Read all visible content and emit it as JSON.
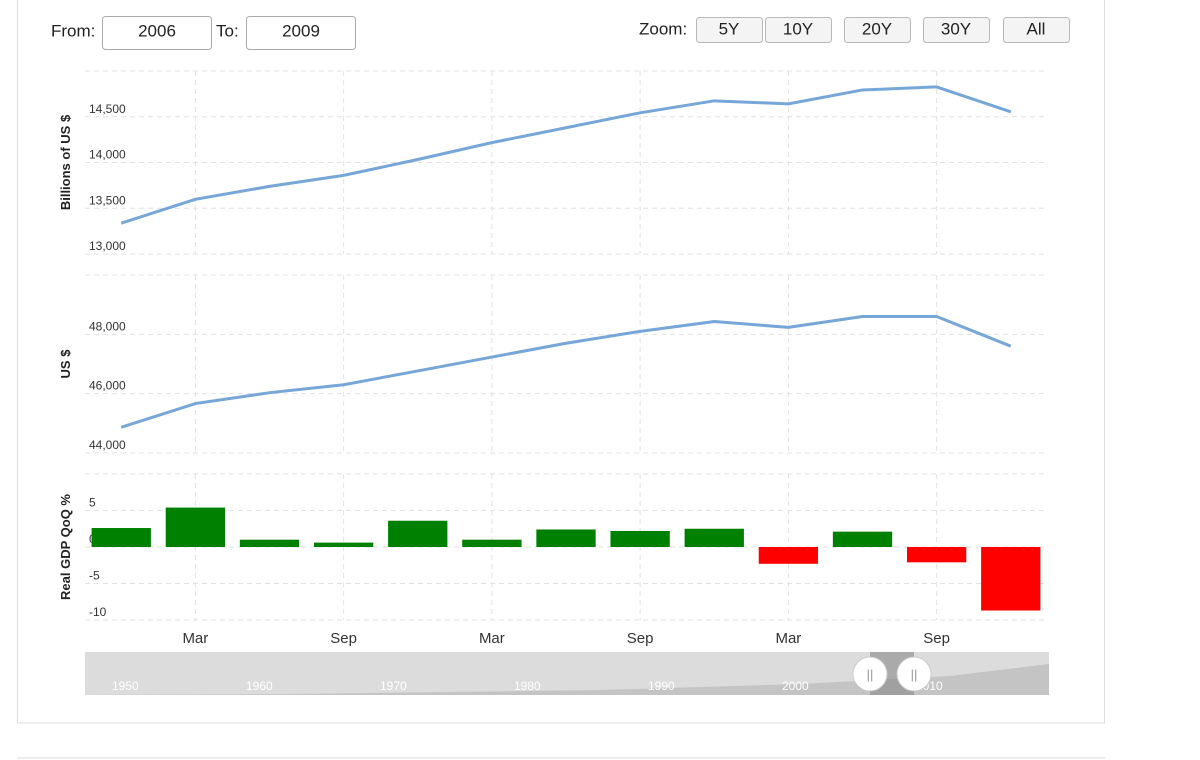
{
  "controls": {
    "from_label": "From:",
    "from_value": "2006",
    "to_label": "To:",
    "to_value": "2009",
    "zoom_label": "Zoom:",
    "zoom_buttons": [
      "5Y",
      "10Y",
      "20Y",
      "30Y",
      "All"
    ],
    "navigator_labels": [
      "1950",
      "1960",
      "1970",
      "1980",
      "1990",
      "2000",
      "2010"
    ]
  },
  "chart_data": [
    {
      "type": "line",
      "y_label": "Billions of US $",
      "x": [
        "2005-12",
        "2006-03",
        "2006-06",
        "2006-09",
        "2006-12",
        "2007-03",
        "2007-06",
        "2007-09",
        "2007-12",
        "2008-03",
        "2008-06",
        "2008-09",
        "2008-12"
      ],
      "values": [
        13337,
        13598,
        13739,
        13859,
        14033,
        14217,
        14380,
        14543,
        14674,
        14641,
        14793,
        14826,
        14554
      ],
      "color": "#77a6d8",
      "xlim": [
        "2005-10-17",
        "2009-01-15"
      ],
      "ylim": [
        13000,
        15000
      ],
      "yticks": [
        {
          "value": 13000,
          "label": "13,000"
        },
        {
          "value": 13500,
          "label": "13,500"
        },
        {
          "value": 14000,
          "label": "14,000"
        },
        {
          "value": 14500,
          "label": "14,500"
        }
      ],
      "grid": true
    },
    {
      "type": "line",
      "y_label": "US $",
      "x": [
        "2005-12",
        "2006-03",
        "2006-06",
        "2006-09",
        "2006-12",
        "2007-03",
        "2007-06",
        "2007-09",
        "2007-12",
        "2008-03",
        "2008-06",
        "2008-09",
        "2008-12"
      ],
      "values": [
        44867,
        45667,
        46033,
        46300,
        46767,
        47233,
        47700,
        48100,
        48433,
        48233,
        48600,
        48600,
        47600
      ],
      "color": "#77a6d8",
      "xlim": [
        "2005-10-17",
        "2009-01-15"
      ],
      "ylim": [
        44000,
        50000
      ],
      "yticks": [
        {
          "value": 44000,
          "label": "44,000"
        },
        {
          "value": 46000,
          "label": "46,000"
        },
        {
          "value": 48000,
          "label": "48,000"
        }
      ],
      "grid": true
    },
    {
      "type": "bar",
      "y_label": "Real GDP QoQ %",
      "x": [
        "2005-12",
        "2006-03",
        "2006-06",
        "2006-09",
        "2006-12",
        "2007-03",
        "2007-06",
        "2007-09",
        "2007-12",
        "2008-03",
        "2008-06",
        "2008-09",
        "2008-12"
      ],
      "values": [
        2.6,
        5.4,
        1.0,
        0.6,
        3.6,
        1.0,
        2.4,
        2.2,
        2.5,
        -2.3,
        2.1,
        -2.1,
        -8.7
      ],
      "color": "#008000",
      "negative_color": "#ff0000",
      "xlim": [
        "2005-10-17",
        "2009-01-15"
      ],
      "ylim": [
        -10,
        10
      ],
      "yticks": [
        -10,
        -5,
        0,
        5
      ],
      "grid": true,
      "xticks": [
        {
          "value": "2006-03",
          "label": "Mar"
        },
        {
          "value": "2006-09",
          "label": "Sep"
        },
        {
          "value": "2007-03",
          "label": "Mar"
        },
        {
          "value": "2007-09",
          "label": "Sep"
        },
        {
          "value": "2008-03",
          "label": "Mar"
        },
        {
          "value": "2008-09",
          "label": "Sep"
        }
      ]
    }
  ]
}
